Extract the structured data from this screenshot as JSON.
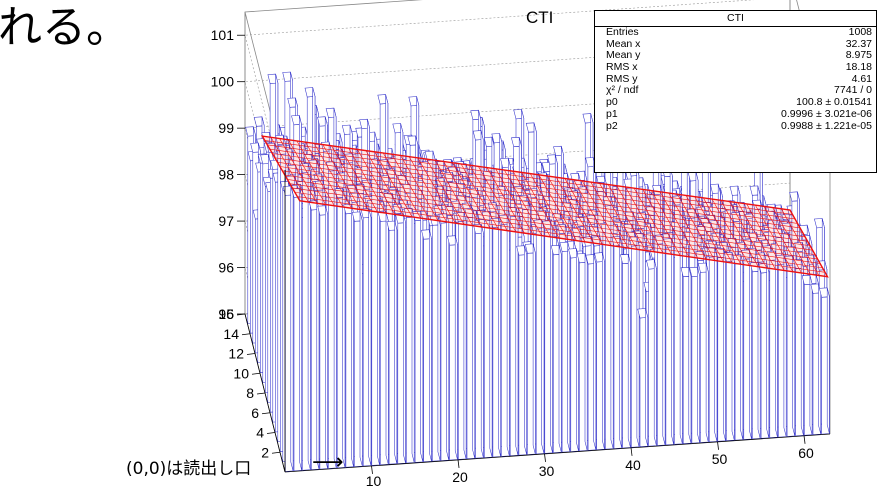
{
  "heading_text": "れる。",
  "annotation": {
    "text": "(0,0)は読出し口",
    "arrow": "⟶"
  },
  "stats_box": {
    "title": "CTI",
    "rows": [
      {
        "label": "Entries",
        "value": "1008"
      },
      {
        "label": "Mean x",
        "value": "32.37"
      },
      {
        "label": "Mean y",
        "value": "8.975"
      },
      {
        "label": "RMS x",
        "value": "18.18"
      },
      {
        "label": "RMS y",
        "value": "4.61"
      },
      {
        "label": "χ² / ndf",
        "value": "7741 / 0"
      },
      {
        "label": "p0",
        "value": "100.8 ± 0.01541"
      },
      {
        "label": "p1",
        "value": "0.9996 ± 3.021e-06"
      },
      {
        "label": "p2",
        "value": "0.9988 ± 1.221e-05"
      }
    ]
  },
  "colors": {
    "bars": "#3333cc",
    "fit": "#ee1111",
    "axis": "#000000",
    "grid": "#999999"
  },
  "chart_data": {
    "type": "lego",
    "title": "CTI",
    "xlabel": "",
    "ylabel": "",
    "zlabel": "",
    "x_ticks": [
      10,
      20,
      30,
      40,
      50,
      60
    ],
    "y_ticks": [
      2,
      4,
      6,
      8,
      10,
      12,
      14,
      16
    ],
    "z_ticks": [
      95,
      96,
      97,
      98,
      99,
      100,
      101
    ],
    "x_range": [
      0,
      63
    ],
    "y_range": [
      0,
      16
    ],
    "z_range": [
      95,
      101.5
    ],
    "fit": {
      "function": "p0 * p1^x * p2^y",
      "p0": 100.8,
      "p1": 0.9996,
      "p2": 0.9988
    },
    "fit_range": {
      "x": [
        2,
        63
      ],
      "y": [
        1,
        16
      ]
    },
    "sample_rows": [
      {
        "y": 15,
        "values": [
          99.2,
          98.9,
          98.7,
          98.5,
          98.6,
          98.9,
          98.4,
          98.3,
          98.7,
          98.6,
          98.2,
          98.4
        ]
      },
      {
        "y": 1,
        "values": [
          99.3,
          99.6,
          99.0,
          99.2,
          98.9,
          98.7,
          98.5,
          98.8,
          98.6,
          98.4,
          98.2,
          98.9
        ]
      }
    ]
  }
}
